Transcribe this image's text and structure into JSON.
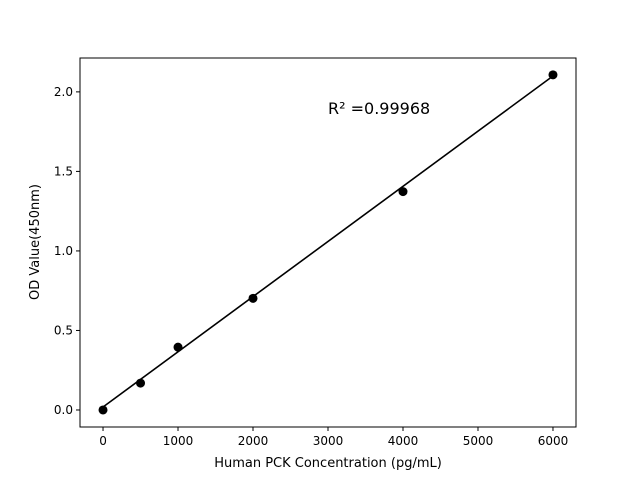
{
  "chart_data": {
    "type": "scatter",
    "title": "",
    "xlabel": "Human PCK Concentration (pg/mL)",
    "ylabel": "OD Value(450nm)",
    "xlim": [
      -307,
      6307
    ],
    "ylim": [
      -0.107,
      2.213
    ],
    "xticks": [
      0,
      1000,
      2000,
      3000,
      4000,
      5000,
      6000
    ],
    "yticks": [
      0.0,
      0.5,
      1.0,
      1.5,
      2.0
    ],
    "xtick_labels": [
      "0",
      "1000",
      "2000",
      "3000",
      "4000",
      "5000",
      "6000"
    ],
    "ytick_labels": [
      "0.0",
      "0.5",
      "1.0",
      "1.5",
      "2.0"
    ],
    "grid": false,
    "series": [
      {
        "x": [
          0,
          500,
          1000,
          2000,
          4000,
          6000
        ],
        "y": [
          0.0,
          0.169,
          0.395,
          0.702,
          1.373,
          2.107
        ],
        "color": "#000000",
        "marker": "circle"
      }
    ],
    "fit_line": {
      "x": [
        0,
        6000
      ],
      "y": [
        0.019,
        2.1
      ],
      "color": "#000000"
    },
    "annotation": {
      "text": "R² =0.99968",
      "x": 3000,
      "y": 1.9
    }
  }
}
